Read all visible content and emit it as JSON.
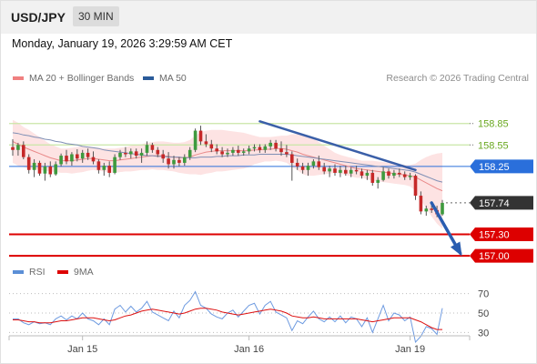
{
  "header": {
    "symbol": "USD/JPY",
    "timeframe": "30 MIN"
  },
  "datetime": "Monday, January 19, 2026 3:29:59 AM CET",
  "legend": {
    "bollinger": {
      "label": "MA 20 + Bollinger Bands",
      "color": "#f08080"
    },
    "ma50": {
      "label": "MA 50",
      "color": "#2a5b9a"
    }
  },
  "credit": "Research © 2026 Trading Central",
  "rsi_legend": {
    "rsi": {
      "label": "RSI",
      "color": "#5b8fd6"
    },
    "ma9": {
      "label": "9MA",
      "color": "#dd0000"
    }
  },
  "chart_data": {
    "type": "candlestick",
    "price_range": [
      156.95,
      159.05
    ],
    "levels": [
      {
        "value": 158.85,
        "label": "158.85",
        "kind": "resistance",
        "color": "#6aa820"
      },
      {
        "value": 158.55,
        "label": "158.55",
        "kind": "resistance",
        "color": "#6aa820"
      },
      {
        "value": 158.25,
        "label": "158.25",
        "kind": "pivot",
        "color": "#2a6fdb"
      },
      {
        "value": 157.74,
        "label": "157.74",
        "kind": "last",
        "color": "#333333"
      },
      {
        "value": 157.3,
        "label": "157.30",
        "kind": "support",
        "color": "#dd0000"
      },
      {
        "value": 157.0,
        "label": "157.00",
        "kind": "support",
        "color": "#dd0000"
      }
    ],
    "x_ticks": [
      "Jan 15",
      "Jan 16",
      "Jan 19"
    ],
    "rsi_ticks": [
      "70",
      "50",
      "30"
    ],
    "rsi_range": [
      20,
      80
    ],
    "candles": [
      [
        158.52,
        158.63,
        158.4,
        158.48
      ],
      [
        158.48,
        158.58,
        158.4,
        158.55
      ],
      [
        158.55,
        158.6,
        158.35,
        158.38
      ],
      [
        158.38,
        158.42,
        158.15,
        158.2
      ],
      [
        158.2,
        158.35,
        158.1,
        158.3
      ],
      [
        158.3,
        158.33,
        158.12,
        158.15
      ],
      [
        158.15,
        158.3,
        158.05,
        158.25
      ],
      [
        158.25,
        158.32,
        158.1,
        158.14
      ],
      [
        158.14,
        158.32,
        158.12,
        158.28
      ],
      [
        158.28,
        158.43,
        158.25,
        158.4
      ],
      [
        158.4,
        158.48,
        158.28,
        158.32
      ],
      [
        158.32,
        158.45,
        158.26,
        158.42
      ],
      [
        158.42,
        158.49,
        158.32,
        158.36
      ],
      [
        158.36,
        158.48,
        158.3,
        158.44
      ],
      [
        158.44,
        158.5,
        158.34,
        158.38
      ],
      [
        158.38,
        158.46,
        158.28,
        158.32
      ],
      [
        158.32,
        158.35,
        158.15,
        158.2
      ],
      [
        158.2,
        158.3,
        158.12,
        158.26
      ],
      [
        158.26,
        158.32,
        158.1,
        158.16
      ],
      [
        158.16,
        158.42,
        158.14,
        158.38
      ],
      [
        158.38,
        158.48,
        158.34,
        158.44
      ],
      [
        158.44,
        158.52,
        158.38,
        158.42
      ],
      [
        158.42,
        158.5,
        158.36,
        158.46
      ],
      [
        158.46,
        158.5,
        158.36,
        158.4
      ],
      [
        158.4,
        158.5,
        158.3,
        158.44
      ],
      [
        158.44,
        158.6,
        158.4,
        158.55
      ],
      [
        158.55,
        158.58,
        158.44,
        158.48
      ],
      [
        158.48,
        158.52,
        158.38,
        158.42
      ],
      [
        158.42,
        158.48,
        158.3,
        158.36
      ],
      [
        158.36,
        158.45,
        158.22,
        158.28
      ],
      [
        158.28,
        158.4,
        158.22,
        158.34
      ],
      [
        158.34,
        158.38,
        158.25,
        158.3
      ],
      [
        158.3,
        158.42,
        158.26,
        158.38
      ],
      [
        158.38,
        158.52,
        158.34,
        158.48
      ],
      [
        158.48,
        158.78,
        158.45,
        158.75
      ],
      [
        158.75,
        158.82,
        158.55,
        158.6
      ],
      [
        158.6,
        158.7,
        158.52,
        158.56
      ],
      [
        158.56,
        158.62,
        158.45,
        158.5
      ],
      [
        158.5,
        158.56,
        158.42,
        158.46
      ],
      [
        158.46,
        158.52,
        158.38,
        158.42
      ],
      [
        158.42,
        158.5,
        158.38,
        158.44
      ],
      [
        158.44,
        158.52,
        158.4,
        158.48
      ],
      [
        158.48,
        158.54,
        158.4,
        158.44
      ],
      [
        158.44,
        158.5,
        158.4,
        158.46
      ],
      [
        158.46,
        158.54,
        158.42,
        158.5
      ],
      [
        158.5,
        158.56,
        158.46,
        158.52
      ],
      [
        158.52,
        158.56,
        158.44,
        158.48
      ],
      [
        158.48,
        158.56,
        158.44,
        158.53
      ],
      [
        158.53,
        158.62,
        158.48,
        158.58
      ],
      [
        158.58,
        158.62,
        158.46,
        158.5
      ],
      [
        158.5,
        158.6,
        158.4,
        158.45
      ],
      [
        158.45,
        158.55,
        158.38,
        158.42
      ],
      [
        158.42,
        158.46,
        158.05,
        158.3
      ],
      [
        158.3,
        158.36,
        158.2,
        158.25
      ],
      [
        158.25,
        158.3,
        158.15,
        158.2
      ],
      [
        158.2,
        158.3,
        158.12,
        158.26
      ],
      [
        158.26,
        158.35,
        158.22,
        158.32
      ],
      [
        158.32,
        158.4,
        158.2,
        158.24
      ],
      [
        158.24,
        158.3,
        158.14,
        158.18
      ],
      [
        158.18,
        158.26,
        158.1,
        158.22
      ],
      [
        158.22,
        158.28,
        158.12,
        158.16
      ],
      [
        158.16,
        158.26,
        158.1,
        158.2
      ],
      [
        158.2,
        158.26,
        158.12,
        158.15
      ],
      [
        158.15,
        158.24,
        158.1,
        158.2
      ],
      [
        158.2,
        158.26,
        158.14,
        158.18
      ],
      [
        158.18,
        158.22,
        158.08,
        158.12
      ],
      [
        158.12,
        158.2,
        158.06,
        158.16
      ],
      [
        158.16,
        158.2,
        157.98,
        158.02
      ],
      [
        158.02,
        158.1,
        157.94,
        158.06
      ],
      [
        158.06,
        158.24,
        158.04,
        158.18
      ],
      [
        158.18,
        158.22,
        158.08,
        158.12
      ],
      [
        158.12,
        158.2,
        158.08,
        158.16
      ],
      [
        158.16,
        158.22,
        158.1,
        158.14
      ],
      [
        158.14,
        158.18,
        158.06,
        158.1
      ],
      [
        158.1,
        158.16,
        158.06,
        158.12
      ],
      [
        158.12,
        158.14,
        157.78,
        157.84
      ],
      [
        157.84,
        157.9,
        157.58,
        157.62
      ],
      [
        157.62,
        157.7,
        157.56,
        157.66
      ],
      [
        157.66,
        157.74,
        157.6,
        157.64
      ],
      [
        157.64,
        157.7,
        157.54,
        157.58
      ],
      [
        157.58,
        157.78,
        157.56,
        157.74
      ]
    ],
    "ma20": [
      158.6,
      158.56,
      158.52,
      158.49,
      158.46,
      158.43,
      158.4,
      158.37,
      158.35,
      158.33,
      158.33,
      158.33,
      158.34,
      158.35,
      158.36,
      158.36,
      158.35,
      158.34,
      158.33,
      158.33,
      158.34,
      158.35,
      158.36,
      158.37,
      158.38,
      158.39,
      158.4,
      158.4,
      158.4,
      158.39,
      158.38,
      158.37,
      158.37,
      158.38,
      158.41,
      158.43,
      158.45,
      158.46,
      158.47,
      158.47,
      158.47,
      158.47,
      158.47,
      158.47,
      158.47,
      158.48,
      158.48,
      158.49,
      158.49,
      158.5,
      158.5,
      158.49,
      158.47,
      158.45,
      158.42,
      158.4,
      158.38,
      158.36,
      158.34,
      158.32,
      158.3,
      158.28,
      158.26,
      158.24,
      158.22,
      158.21,
      158.2,
      158.19,
      158.18,
      158.17,
      158.16,
      158.15,
      158.14,
      158.13,
      158.12,
      158.1,
      158.06,
      158.02,
      157.98,
      157.94,
      157.91
    ],
    "bb_upper": [
      158.9,
      158.86,
      158.8,
      158.76,
      158.71,
      158.66,
      158.61,
      158.56,
      158.53,
      158.5,
      158.5,
      158.51,
      158.52,
      158.53,
      158.53,
      158.52,
      158.51,
      158.5,
      158.5,
      158.5,
      158.51,
      158.52,
      158.54,
      158.55,
      158.56,
      158.58,
      158.59,
      158.6,
      158.6,
      158.59,
      158.58,
      158.58,
      158.59,
      158.62,
      158.68,
      158.73,
      158.75,
      158.76,
      158.76,
      158.76,
      158.75,
      158.74,
      158.73,
      158.72,
      158.7,
      158.68,
      158.66,
      158.66,
      158.66,
      158.67,
      158.68,
      158.68,
      158.7,
      158.7,
      158.7,
      158.68,
      158.64,
      158.59,
      158.54,
      158.49,
      158.44,
      158.41,
      158.39,
      158.37,
      158.35,
      158.33,
      158.33,
      158.33,
      158.32,
      158.31,
      158.3,
      158.29,
      158.28,
      158.27,
      158.27,
      158.29,
      158.34,
      158.38,
      158.41,
      158.43,
      158.44
    ],
    "bb_lower": [
      158.3,
      158.26,
      158.24,
      158.22,
      158.21,
      158.2,
      158.19,
      158.18,
      158.17,
      158.16,
      158.16,
      158.15,
      158.16,
      158.17,
      158.19,
      158.2,
      158.19,
      158.18,
      158.16,
      158.16,
      158.17,
      158.18,
      158.18,
      158.19,
      158.2,
      158.2,
      158.21,
      158.2,
      158.2,
      158.19,
      158.18,
      158.16,
      158.15,
      158.14,
      158.14,
      158.13,
      158.15,
      158.16,
      158.18,
      158.18,
      158.19,
      158.2,
      158.21,
      158.22,
      158.24,
      158.28,
      158.3,
      158.32,
      158.32,
      158.33,
      158.32,
      158.3,
      158.24,
      158.2,
      158.14,
      158.12,
      158.12,
      158.13,
      158.14,
      158.15,
      158.16,
      158.15,
      158.13,
      158.11,
      158.09,
      158.09,
      158.07,
      158.05,
      158.04,
      158.03,
      158.02,
      158.01,
      158.0,
      157.99,
      157.97,
      157.91,
      157.78,
      157.66,
      157.55,
      157.45,
      157.38
    ],
    "ma50": [
      158.72,
      158.71,
      158.69,
      158.68,
      158.66,
      158.65,
      158.63,
      158.62,
      158.6,
      158.59,
      158.57,
      158.56,
      158.55,
      158.53,
      158.52,
      158.51,
      158.5,
      158.48,
      158.47,
      158.46,
      158.45,
      158.44,
      158.43,
      158.42,
      158.41,
      158.4,
      158.4,
      158.39,
      158.39,
      158.38,
      158.38,
      158.38,
      158.37,
      158.37,
      158.37,
      158.38,
      158.38,
      158.38,
      158.39,
      158.39,
      158.4,
      158.4,
      158.4,
      158.41,
      158.41,
      158.41,
      158.42,
      158.42,
      158.42,
      158.42,
      158.42,
      158.42,
      158.41,
      158.4,
      158.39,
      158.38,
      158.37,
      158.36,
      158.35,
      158.34,
      158.33,
      158.32,
      158.31,
      158.3,
      158.29,
      158.28,
      158.27,
      158.26,
      158.25,
      158.24,
      158.23,
      158.22,
      158.21,
      158.2,
      158.19,
      158.17,
      158.14,
      158.11,
      158.08,
      158.05,
      158.03
    ],
    "trendline": {
      "from": [
        46,
        158.88
      ],
      "to": [
        75,
        158.2
      ]
    },
    "arrow": {
      "from": [
        78,
        157.74
      ],
      "to": [
        84,
        157.0
      ]
    },
    "rsi": [
      44,
      44,
      40,
      38,
      41,
      39,
      40,
      38,
      44,
      47,
      43,
      47,
      44,
      50,
      44,
      42,
      38,
      44,
      38,
      54,
      58,
      51,
      57,
      51,
      55,
      62,
      51,
      48,
      45,
      42,
      52,
      45,
      58,
      63,
      72,
      58,
      55,
      49,
      46,
      44,
      50,
      53,
      46,
      52,
      58,
      60,
      49,
      58,
      62,
      51,
      48,
      45,
      32,
      42,
      39,
      46,
      52,
      44,
      41,
      46,
      41,
      47,
      40,
      46,
      44,
      36,
      45,
      30,
      44,
      58,
      42,
      50,
      48,
      42,
      46,
      20,
      26,
      36,
      34,
      28,
      55
    ],
    "rsi_ma9": [
      43,
      43,
      42,
      41,
      41,
      40,
      40,
      40,
      41,
      42,
      42,
      43,
      44,
      45,
      45,
      45,
      44,
      43,
      42,
      43,
      45,
      47,
      48,
      50,
      52,
      53,
      54,
      53,
      52,
      51,
      50,
      49,
      50,
      52,
      54,
      55,
      55,
      54,
      53,
      51,
      50,
      49,
      48,
      49,
      50,
      51,
      52,
      53,
      54,
      53,
      52,
      50,
      47,
      46,
      45,
      45,
      46,
      45,
      44,
      44,
      44,
      44,
      44,
      44,
      44,
      43,
      42,
      41,
      42,
      43,
      44,
      45,
      45,
      45,
      45,
      43,
      41,
      38,
      35,
      33,
      33
    ]
  }
}
